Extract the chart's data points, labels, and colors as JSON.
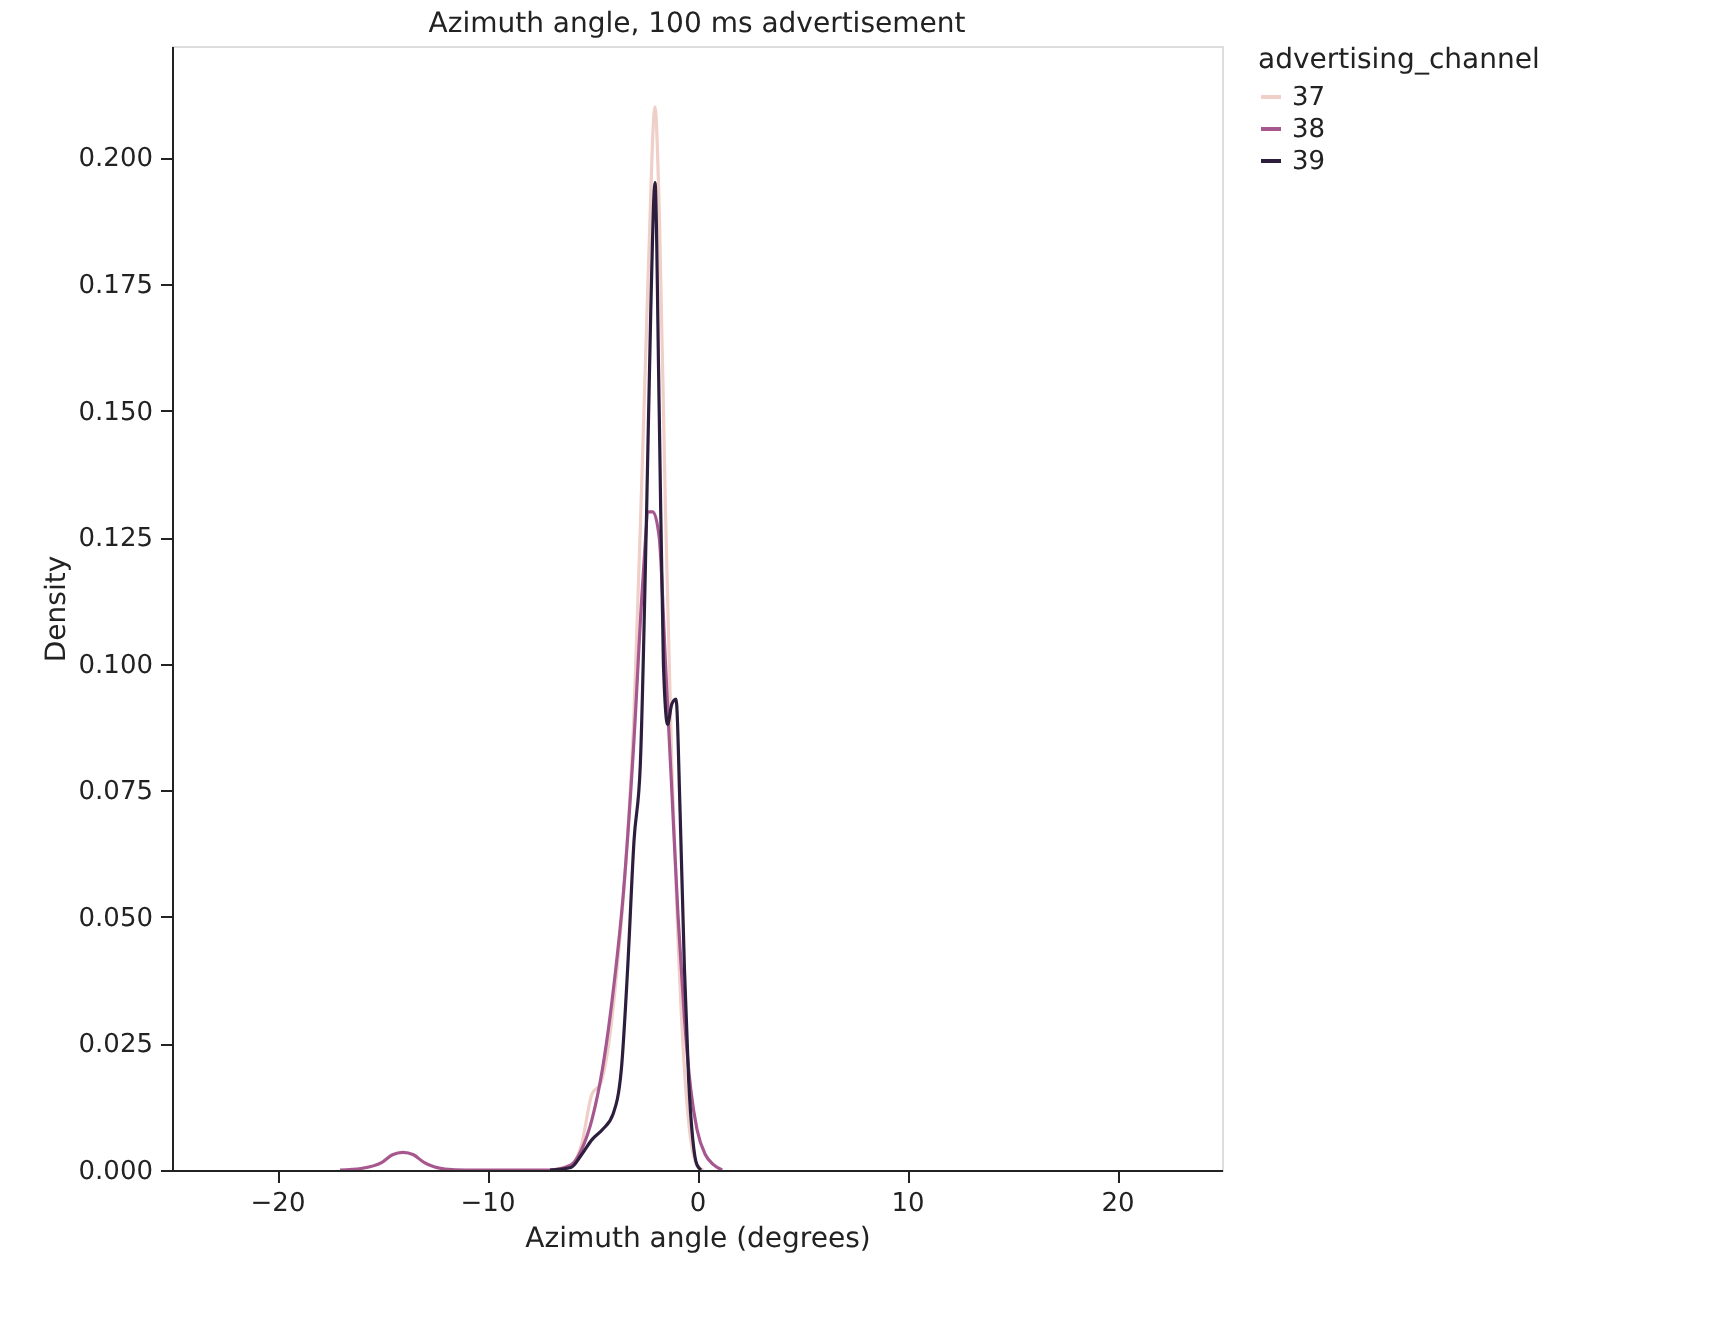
{
  "chart_data": {
    "type": "line",
    "title": "Azimuth angle, 100 ms advertisement",
    "xlabel": "Azimuth angle (degrees)",
    "ylabel": "Density",
    "legend_title": "advertising_channel",
    "xlim": [
      -25,
      25
    ],
    "ylim": [
      0,
      0.222
    ],
    "xticks": [
      {
        "value": -20,
        "label": "−20"
      },
      {
        "value": -10,
        "label": "−10"
      },
      0,
      10,
      20
    ],
    "yticks": [
      {
        "value": 0,
        "label": "0.000"
      },
      {
        "value": 0.025,
        "label": "0.025"
      },
      {
        "value": 0.05,
        "label": "0.050"
      },
      {
        "value": 0.075,
        "label": "0.075"
      },
      {
        "value": 0.1,
        "label": "0.100"
      },
      {
        "value": 0.125,
        "label": "0.125"
      },
      {
        "value": 0.15,
        "label": "0.150"
      },
      {
        "value": 0.175,
        "label": "0.175"
      },
      {
        "value": 0.2,
        "label": "0.200"
      }
    ],
    "grid": false,
    "legend": "right",
    "marker": "none",
    "line_style": "solid",
    "series": [
      {
        "name": "37",
        "color": "#efcfc8",
        "x": [
          -7,
          -6,
          -5.5,
          -5,
          -4.6,
          -4.2,
          -3.8,
          -3.4,
          -3.0,
          -2.6,
          -2.3,
          -2.0,
          -1.8,
          -1.5,
          -1.2,
          -0.9,
          -0.6,
          -0.3,
          0,
          0.3
        ],
        "values": [
          0,
          0.001,
          0.005,
          0.015,
          0.017,
          0.025,
          0.04,
          0.06,
          0.09,
          0.14,
          0.18,
          0.21,
          0.19,
          0.13,
          0.08,
          0.045,
          0.02,
          0.006,
          0.001,
          0
        ]
      },
      {
        "name": "38",
        "color": "#a5578e",
        "x": [
          -17,
          -16,
          -15,
          -14.5,
          -14,
          -13.5,
          -13,
          -12,
          -11,
          -7,
          -6,
          -5.5,
          -5,
          -4.5,
          -4,
          -3.5,
          -3.0,
          -2.6,
          -2.3,
          -2.1,
          -1.8,
          -1.5,
          -1.2,
          -0.9,
          -0.6,
          -0.3,
          0,
          0.4,
          0.8,
          1.2
        ],
        "values": [
          0,
          0.0003,
          0.0015,
          0.003,
          0.0035,
          0.003,
          0.0015,
          0.0002,
          0,
          0,
          0.001,
          0.004,
          0.01,
          0.02,
          0.035,
          0.055,
          0.085,
          0.115,
          0.13,
          0.13,
          0.125,
          0.1,
          0.075,
          0.05,
          0.03,
          0.016,
          0.008,
          0.003,
          0.001,
          0
        ]
      },
      {
        "name": "39",
        "color": "#2d1e3e",
        "x": [
          -7,
          -6,
          -5.5,
          -5,
          -4.5,
          -4,
          -3.6,
          -3.3,
          -3.0,
          -2.7,
          -2.4,
          -2.2,
          -2.0,
          -1.8,
          -1.6,
          -1.4,
          -1.2,
          -1.0,
          -0.8,
          -0.6,
          -0.4,
          -0.2,
          0,
          0.2
        ],
        "values": [
          0,
          0.0005,
          0.003,
          0.006,
          0.008,
          0.011,
          0.02,
          0.04,
          0.065,
          0.08,
          0.13,
          0.17,
          0.195,
          0.15,
          0.1,
          0.088,
          0.092,
          0.093,
          0.07,
          0.04,
          0.018,
          0.006,
          0.001,
          0
        ]
      }
    ]
  }
}
